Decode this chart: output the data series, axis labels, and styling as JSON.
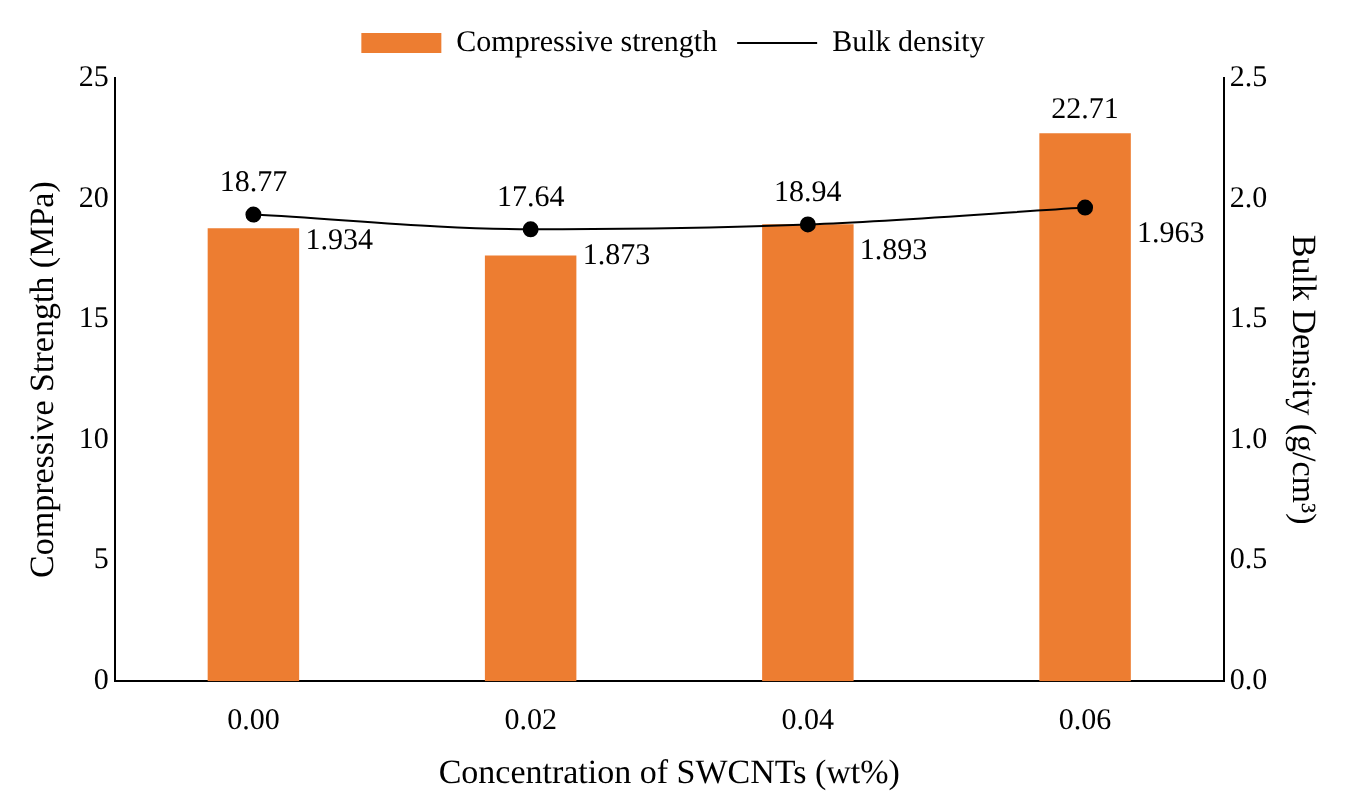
{
  "chart_data": {
    "type": "bar",
    "xlabel": "Concentration of SWCNTs (wt%)",
    "ylabel": "Compressive Strength (MPa)",
    "y2label": "Bulk Density (g/cm³)",
    "categories": [
      "0.00",
      "0.02",
      "0.04",
      "0.06"
    ],
    "series": [
      {
        "name": "Compressive strength",
        "color": "#ed7d31",
        "values": [
          18.77,
          17.64,
          18.94,
          22.71
        ]
      },
      {
        "name": "Bulk density",
        "type": "line",
        "axis": "y2",
        "color": "#000000",
        "values": [
          1.934,
          1.873,
          1.893,
          1.963
        ]
      }
    ],
    "ylim": [
      0,
      25
    ],
    "yticks": [
      0,
      5,
      10,
      15,
      20,
      25
    ],
    "y2lim": [
      0,
      2.5
    ],
    "y2ticks": [
      {
        "value": 0,
        "label": "0.0"
      },
      {
        "value": 0.5,
        "label": "0.5"
      },
      {
        "value": 1,
        "label": "1.0"
      },
      {
        "value": 1.5,
        "label": "1.5"
      },
      {
        "value": 2,
        "label": "2.0"
      },
      {
        "value": 2.5,
        "label": "2.5"
      }
    ],
    "data_labels": true,
    "legend": "top",
    "grid": false,
    "marker": "circle",
    "line_style": "solid"
  }
}
